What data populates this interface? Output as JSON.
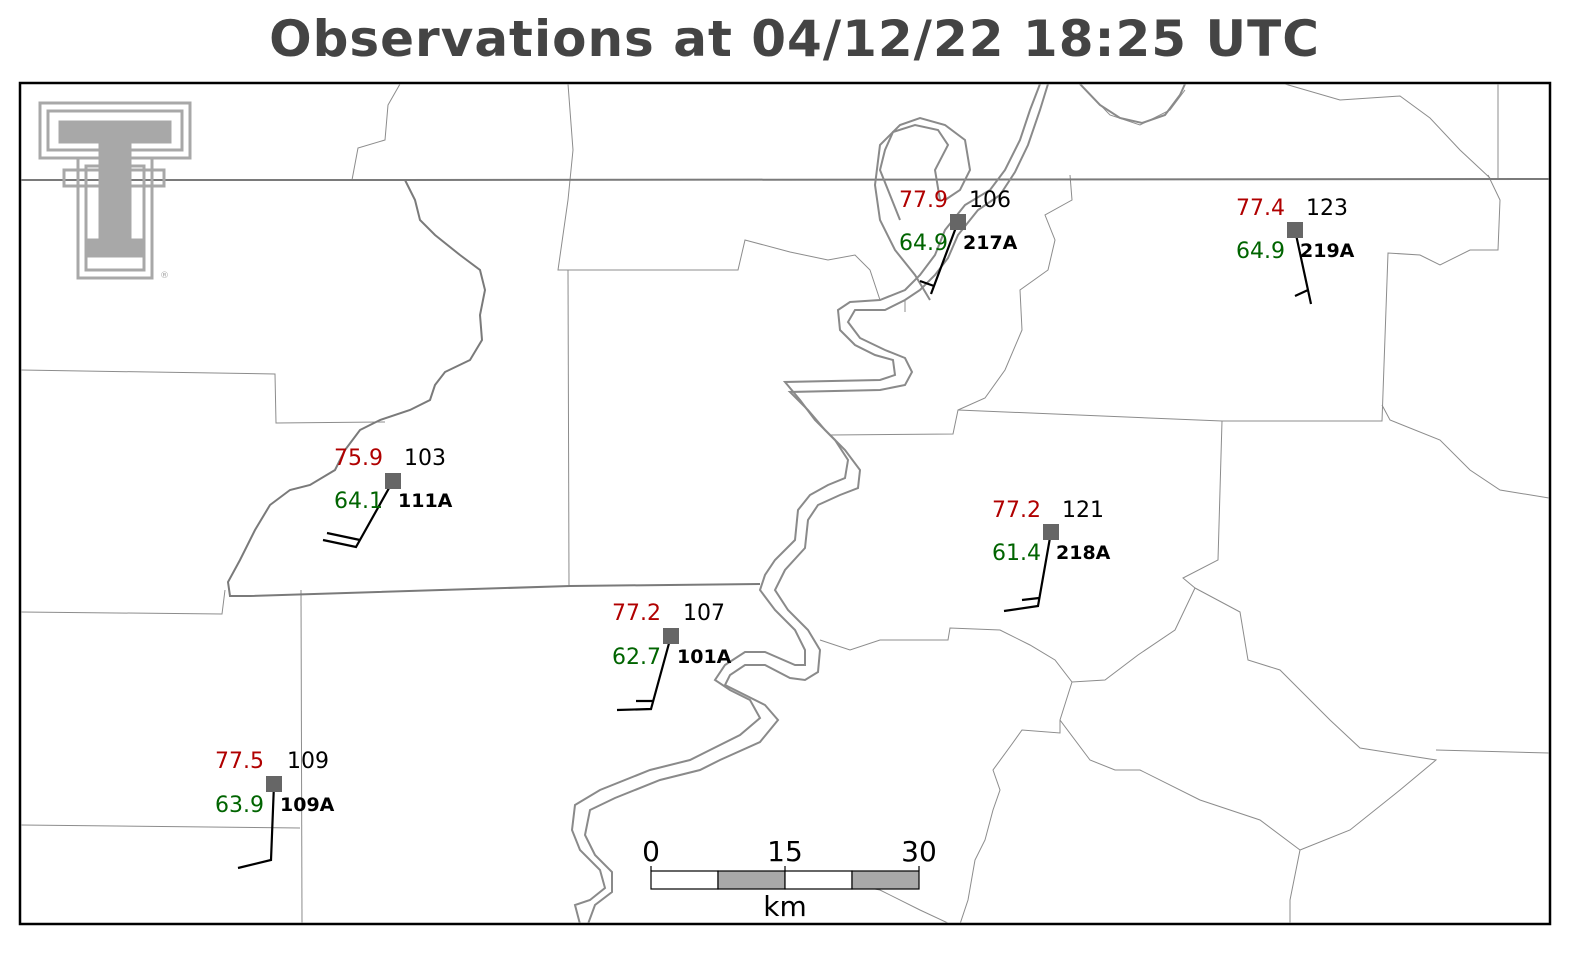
{
  "title": "Observations at 04/12/22 18:25 UTC",
  "logo": {
    "name": "texas-tech-double-t-logo",
    "color": "#a8a8a8",
    "mark": "®"
  },
  "colors": {
    "temperature": "#b00000",
    "dewpoint": "#006400",
    "station_marker": "#666666",
    "boundary": "#8c8c8c"
  },
  "stations": [
    {
      "id": "217A",
      "temp": "77.9",
      "dewpoint": "64.9",
      "value": "106"
    },
    {
      "id": "219A",
      "temp": "77.4",
      "dewpoint": "64.9",
      "value": "123"
    },
    {
      "id": "111A",
      "temp": "75.9",
      "dewpoint": "64.1",
      "value": "103"
    },
    {
      "id": "218A",
      "temp": "77.2",
      "dewpoint": "61.4",
      "value": "121"
    },
    {
      "id": "101A",
      "temp": "77.2",
      "dewpoint": "62.7",
      "value": "107"
    },
    {
      "id": "109A",
      "temp": "77.5",
      "dewpoint": "63.9",
      "value": "109"
    }
  ],
  "scale_bar": {
    "ticks": [
      "0",
      "15",
      "30"
    ],
    "unit": "km"
  }
}
